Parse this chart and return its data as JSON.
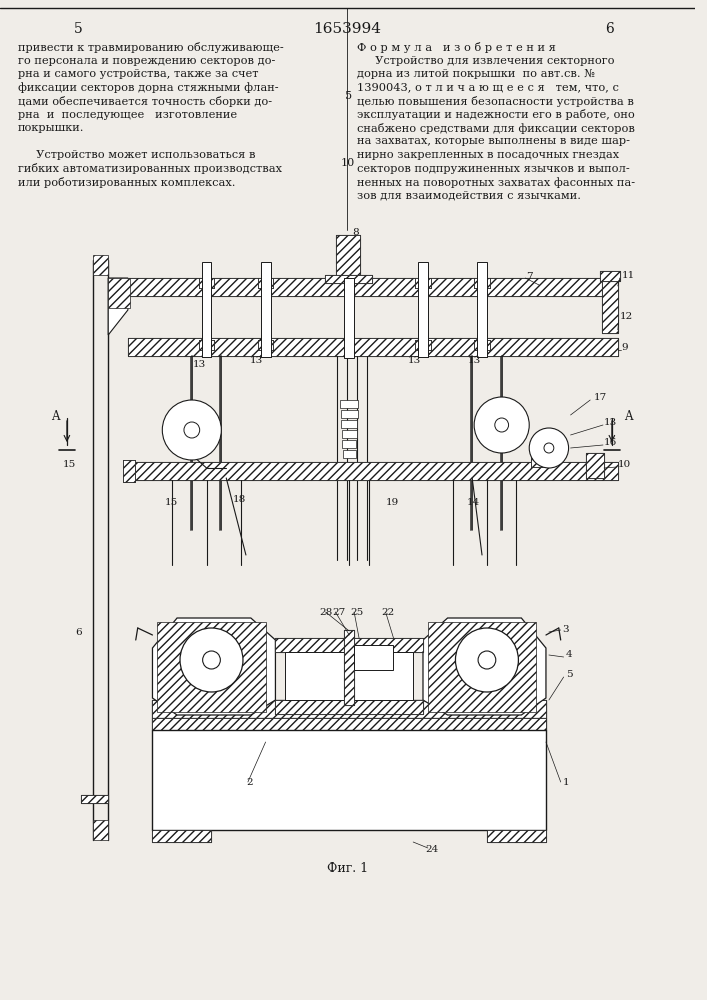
{
  "page_number_left": "5",
  "page_number_center": "1653994",
  "page_number_right": "6",
  "left_col_lines": [
    "привести к травмированию обслуживающе-",
    "го персонала и повреждению секторов до-",
    "рна и самого устройства, также за счет",
    "фиксации секторов дорна стяжными флан-",
    "цами обеспечивается точность сборки до-",
    "рна  и  последующее   изготовление",
    "покрышки.",
    "",
    "     Устройство может использоваться в",
    "гибких автоматизированных производствах",
    "или роботизированных комплексах."
  ],
  "right_col_header": "Ф о р м у л а   и з о б р е т е н и я",
  "right_col_lines": [
    "     Устройство для извлечения секторного",
    "дорна из литой покрышки  по авт.св. №",
    "1390043, о т л и ч а ю щ е е с я   тем, что, с",
    "целью повышения безопасности устройства в",
    "эксплуатации и надежности его в работе, оно",
    "снабжено средствами для фиксации секторов",
    "на захватах, которые выполнены в виде шар-",
    "нирно закрепленных в посадочных гнездах",
    "секторов подпружиненных язычков и выпол-",
    "ненных на поворотных захватах фасонных па-",
    "зов для взаимодействия с язычками."
  ],
  "fig_caption": "Фиг. 1",
  "bg_color": "#f0ede8",
  "lc": "#1a1a1a",
  "tc": "#1a1a1a"
}
